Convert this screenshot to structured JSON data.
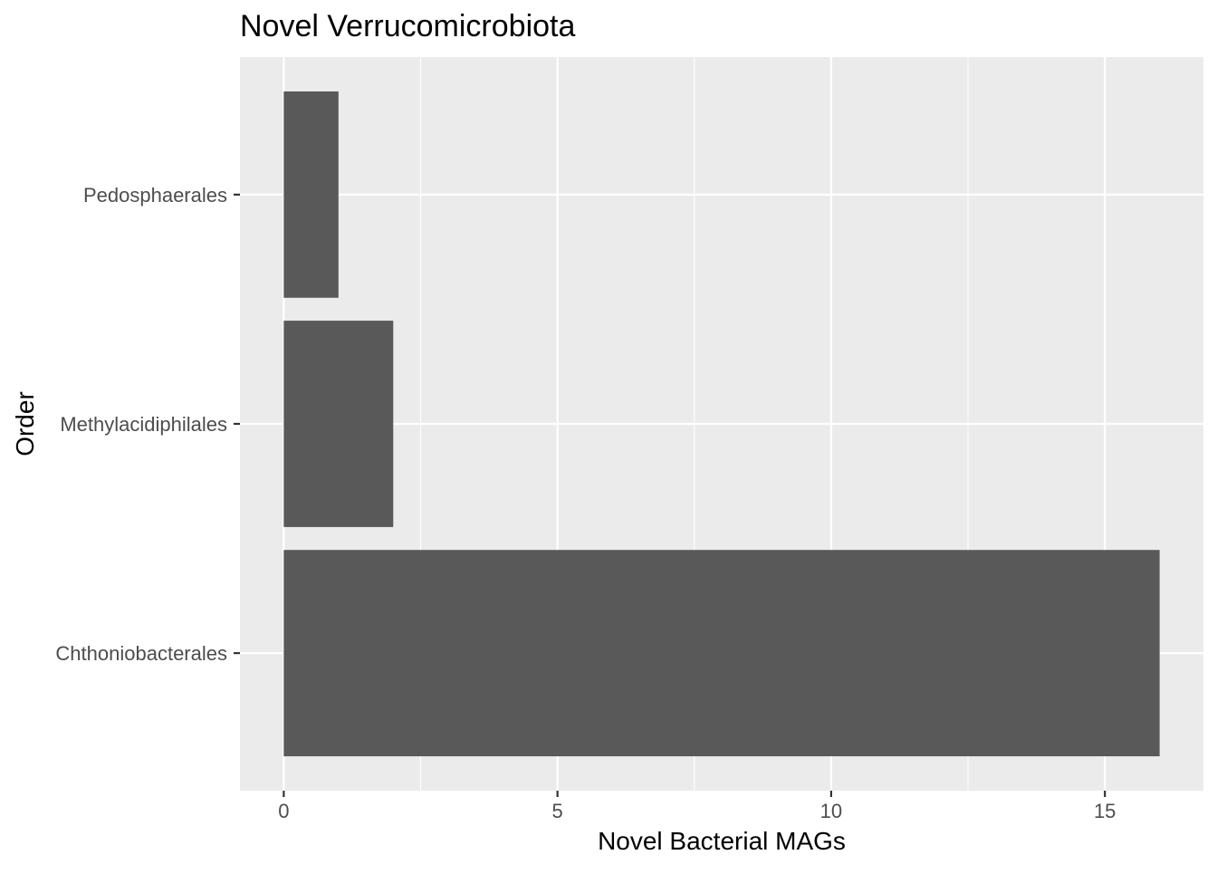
{
  "chart_data": {
    "type": "bar",
    "orientation": "horizontal",
    "title": "Novel Verrucomicrobiota",
    "xlabel": "Novel Bacterial MAGs",
    "ylabel": "Order",
    "categories": [
      "Chthoniobacterales",
      "Methylacidiphilales",
      "Pedosphaerales"
    ],
    "values": [
      16,
      2,
      1
    ],
    "xlim": [
      -0.8,
      16.8
    ],
    "x_ticks": [
      0,
      5,
      10,
      15
    ],
    "x_minor_ticks": [
      2.5,
      7.5,
      12.5
    ],
    "grid": true,
    "legend": "none",
    "colors": {
      "panel": "#EBEBEB",
      "grid": "#FFFFFF",
      "bar": "#595959",
      "tick_label": "#4D4D4D",
      "axis_title": "#000000",
      "tick_mark": "#333333"
    }
  }
}
